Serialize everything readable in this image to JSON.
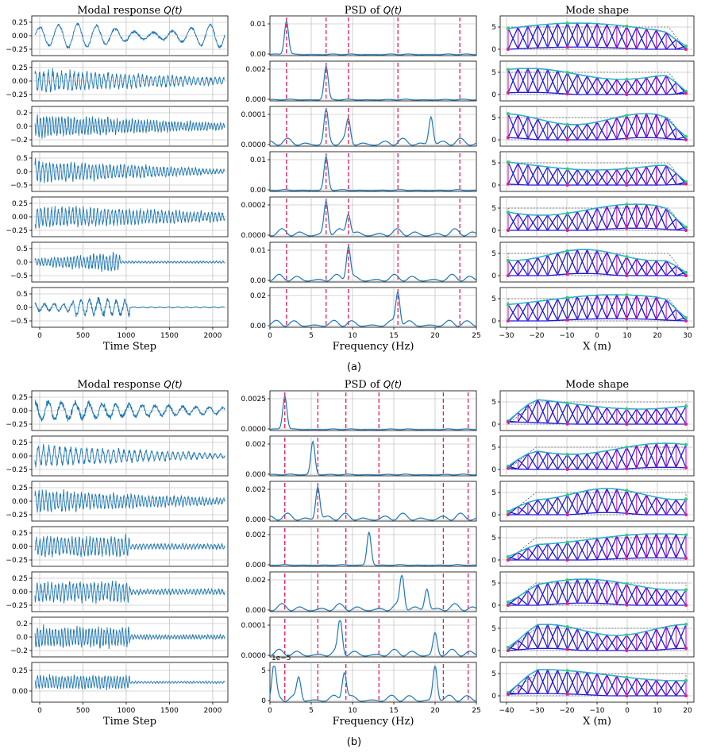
{
  "figure": {
    "panels": [
      {
        "caption": "(a)",
        "col_titles": [
          "Modal response Q(t)",
          "PSD of Q(t)",
          "Mode shape"
        ],
        "xlabels": [
          "Time Step",
          "Frequency (Hz)",
          "X (m)"
        ],
        "time_xticks": [
          "0",
          "500",
          "1000",
          "1500",
          "2000"
        ],
        "psd_xticks": [
          "0",
          "5",
          "10",
          "15",
          "20",
          "25"
        ],
        "mode_xticks": [
          "−30",
          "−20",
          "−10",
          "0",
          "10",
          "20",
          "30"
        ],
        "mode_yticks": [
          "0",
          "5"
        ],
        "rows": [
          {
            "time_yticks": [
              "0.25",
              "0.00",
              "−0.25"
            ],
            "psd_yticks": [
              "0.01",
              "0.00"
            ]
          },
          {
            "time_yticks": [
              "0.25",
              "0.00",
              "−0.25"
            ],
            "psd_yticks": [
              "0.002",
              "0.000"
            ]
          },
          {
            "time_yticks": [
              "0.2",
              "0.0",
              "−0.2"
            ],
            "psd_yticks": [
              "0.0001",
              "0.0000"
            ]
          },
          {
            "time_yticks": [
              "0.5",
              "0.0",
              "−0.5"
            ],
            "psd_yticks": [
              "0.01",
              "0.00"
            ]
          },
          {
            "time_yticks": [
              "0.25",
              "0.00",
              "−0.25"
            ],
            "psd_yticks": [
              "0.0002",
              "0.0000"
            ]
          },
          {
            "time_yticks": [
              "0.5",
              "0.0",
              "−0.5"
            ],
            "psd_yticks": [
              "0.01",
              "0.00"
            ]
          },
          {
            "time_yticks": [
              "0.5",
              "0.0",
              "−0.5"
            ],
            "psd_yticks": [
              "0.02",
              "0.00"
            ]
          }
        ]
      },
      {
        "caption": "(b)",
        "col_titles": [
          "Modal response Q(t)",
          "PSD of Q(t)",
          "Mode shape"
        ],
        "xlabels": [
          "Time Step",
          "Frequency (Hz)",
          "X (m)"
        ],
        "time_xticks": [
          "0",
          "500",
          "1000",
          "1500",
          "2000"
        ],
        "psd_xticks": [
          "0",
          "5",
          "10",
          "15",
          "20",
          "25"
        ],
        "mode_xticks": [
          "−40",
          "−30",
          "−20",
          "−10",
          "0",
          "10",
          "20"
        ],
        "mode_yticks": [
          "0",
          "5"
        ],
        "rows": [
          {
            "time_yticks": [
              "0.25",
              "0.00",
              "−0.25"
            ],
            "psd_yticks": [
              "0.0025",
              "0.0000"
            ]
          },
          {
            "time_yticks": [
              "0.25",
              "0.00",
              "−0.25"
            ],
            "psd_yticks": [
              "0.002",
              "0.000"
            ]
          },
          {
            "time_yticks": [
              "0.25",
              "0.00",
              "−0.25"
            ],
            "psd_yticks": [
              "0.002",
              "0.000"
            ]
          },
          {
            "time_yticks": [
              "0.25",
              "0.00",
              "−0.25"
            ],
            "psd_yticks": [
              "0.002",
              "0.000"
            ]
          },
          {
            "time_yticks": [
              "0.25",
              "0.00",
              "−0.25"
            ],
            "psd_yticks": [
              "0.002",
              "0.000"
            ]
          },
          {
            "time_yticks": [
              "0.2",
              "0.0",
              "−0.2"
            ],
            "psd_yticks": [
              "0.0001",
              "0.0000"
            ]
          },
          {
            "time_yticks": [
              "0.25",
              "0.00"
            ],
            "psd_yticks": [
              "5",
              "0"
            ],
            "psd_offset": "1e−5"
          }
        ]
      }
    ]
  },
  "chart_data": [
    {
      "type": "line",
      "panel": "(a)",
      "title": "PSD of Q(t)",
      "xlabel": "Frequency (Hz)",
      "xlim": [
        0,
        25
      ],
      "dashed_reference_frequencies_hz": [
        2.0,
        6.8,
        9.5,
        15.5,
        23.0
      ],
      "series": [
        {
          "row": 1,
          "peak_hz": [
            2.0
          ],
          "ylim": [
            0,
            0.011
          ]
        },
        {
          "row": 2,
          "peak_hz": [
            6.8
          ],
          "ylim": [
            0,
            0.0028
          ]
        },
        {
          "row": 3,
          "peak_hz": [
            6.8,
            9.5,
            19.5
          ],
          "ylim": [
            0,
            0.00017
          ]
        },
        {
          "row": 4,
          "peak_hz": [
            6.8
          ],
          "ylim": [
            0,
            0.016
          ]
        },
        {
          "row": 5,
          "peak_hz": [
            6.8,
            9.5
          ],
          "ylim": [
            0,
            0.00028
          ]
        },
        {
          "row": 6,
          "peak_hz": [
            9.5
          ],
          "ylim": [
            0,
            0.018
          ]
        },
        {
          "row": 7,
          "peak_hz": [
            15.5
          ],
          "ylim": [
            0,
            0.03
          ]
        }
      ]
    },
    {
      "type": "line",
      "panel": "(b)",
      "title": "PSD of Q(t)",
      "xlabel": "Frequency (Hz)",
      "xlim": [
        0,
        25
      ],
      "dashed_reference_frequencies_hz": [
        1.8,
        5.8,
        9.2,
        13.2,
        21.0,
        24.0
      ],
      "series": [
        {
          "row": 1,
          "peak_hz": [
            1.8
          ],
          "ylim": [
            0,
            0.0032
          ]
        },
        {
          "row": 2,
          "peak_hz": [
            5.2
          ],
          "ylim": [
            0,
            0.0027
          ]
        },
        {
          "row": 3,
          "peak_hz": [
            5.8
          ],
          "ylim": [
            0,
            0.0022
          ]
        },
        {
          "row": 4,
          "peak_hz": [
            12.0
          ],
          "ylim": [
            0,
            0.0027
          ]
        },
        {
          "row": 5,
          "peak_hz": [
            16.0,
            19.0
          ],
          "ylim": [
            0,
            0.0027
          ]
        },
        {
          "row": 6,
          "peak_hz": [
            8.5,
            20.0
          ],
          "ylim": [
            0,
            0.00013
          ]
        },
        {
          "row": 7,
          "peak_hz": [
            0.5,
            3.5,
            9.0,
            20.0
          ],
          "ylim": [
            0,
            6e-05
          ]
        }
      ]
    }
  ]
}
